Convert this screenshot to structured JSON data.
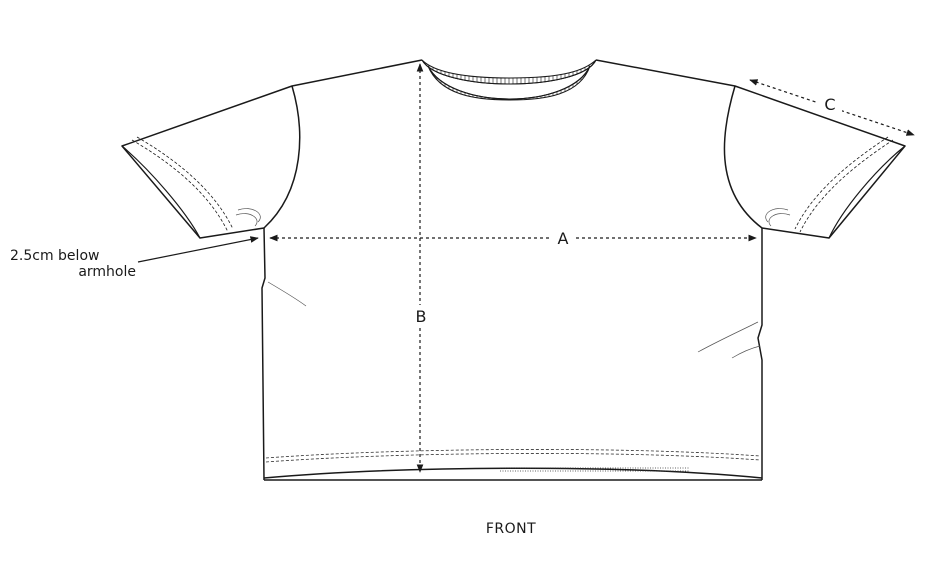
{
  "diagram": {
    "measurement_labels": {
      "a": "A",
      "b": "B",
      "c": "C"
    },
    "note": {
      "line1": "2.5cm below",
      "line2": "armhole"
    },
    "view_label": "FRONT"
  }
}
